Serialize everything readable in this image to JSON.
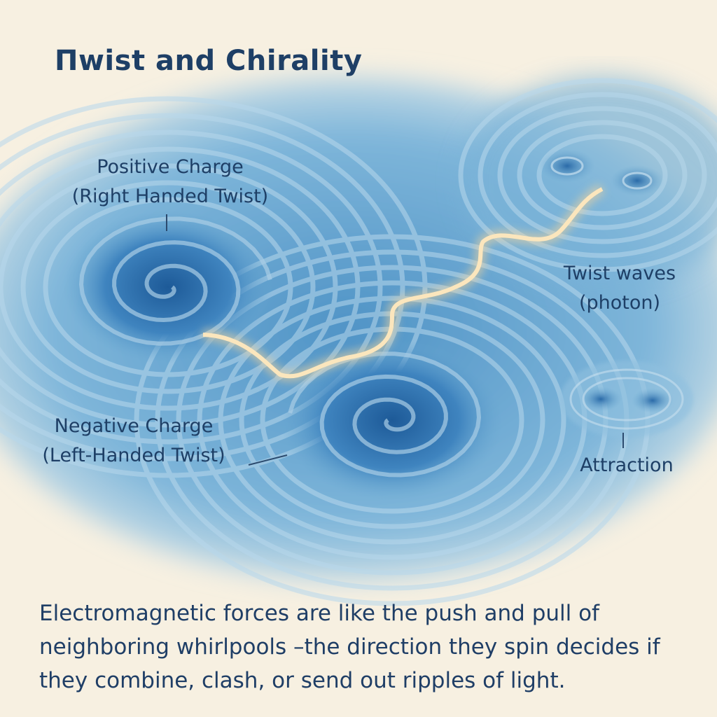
{
  "title": "Πwist and Chirality",
  "labels": {
    "positive_charge": {
      "line1": "Positive Charge",
      "line2": "(Right Handed Twist)"
    },
    "negative_charge": {
      "line1": "Negative Charge",
      "line2": "(Left-Handed Twist)"
    },
    "twist_waves": {
      "line1": "Twist waves",
      "line2": "(photon)"
    },
    "attraction": "Attraction"
  },
  "caption": {
    "line1": "Electromagnetic forces are like the push and pull of",
    "line2": "neighboring whirlpools –the direction they spin decides if",
    "line3": "they combine, clash, or send out ripples of light."
  },
  "colors": {
    "background": "#f7f0e1",
    "water": "#6aa9d2",
    "vortex_core": "#1f5e9c",
    "photon_glow": "#f8d69a",
    "text": "#1e3f66"
  }
}
